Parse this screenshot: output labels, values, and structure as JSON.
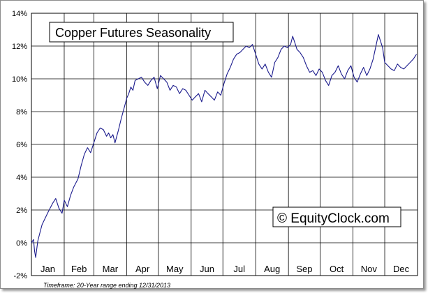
{
  "chart_data": {
    "type": "line",
    "title": "Copper Futures Seasonality",
    "watermark": "© EquityClock.com",
    "footnote": "Timeframe: 20-Year range ending 12/31/2013",
    "xlabel": "",
    "ylabel": "",
    "x_range_days": [
      0,
      365
    ],
    "ylim": [
      -2,
      14
    ],
    "y_ticks": [
      {
        "value": -2,
        "label": "-2%"
      },
      {
        "value": 0,
        "label": "0%"
      },
      {
        "value": 2,
        "label": "2%"
      },
      {
        "value": 4,
        "label": "4%"
      },
      {
        "value": 6,
        "label": "6%"
      },
      {
        "value": 8,
        "label": "8%"
      },
      {
        "value": 10,
        "label": "10%"
      },
      {
        "value": 12,
        "label": "12%"
      },
      {
        "value": 14,
        "label": "14%"
      }
    ],
    "months": [
      "Jan",
      "Feb",
      "Mar",
      "Apr",
      "May",
      "Jun",
      "Jul",
      "Aug",
      "Sep",
      "Oct",
      "Nov",
      "Dec"
    ],
    "month_start_days": [
      0,
      31,
      59,
      90,
      120,
      151,
      181,
      212,
      243,
      273,
      304,
      334
    ],
    "grid": true,
    "line_color": "#1a1a8c",
    "series": [
      {
        "name": "",
        "x_day": [
          0,
          2,
          3,
          4,
          6,
          8,
          10,
          13,
          16,
          20,
          23,
          26,
          29,
          31,
          34,
          37,
          40,
          44,
          47,
          50,
          53,
          56,
          59,
          62,
          65,
          68,
          71,
          73,
          75,
          77,
          79,
          82,
          85,
          88,
          90,
          92,
          94,
          96,
          98,
          101,
          104,
          107,
          110,
          113,
          116,
          119,
          122,
          125,
          128,
          131,
          134,
          137,
          140,
          143,
          146,
          149,
          152,
          155,
          158,
          161,
          164,
          167,
          170,
          173,
          176,
          179,
          182,
          185,
          188,
          191,
          194,
          197,
          200,
          203,
          206,
          209,
          212,
          215,
          218,
          221,
          224,
          227,
          230,
          233,
          236,
          239,
          242,
          245,
          247,
          249,
          251,
          254,
          257,
          260,
          263,
          266,
          269,
          272,
          275,
          278,
          281,
          284,
          287,
          290,
          293,
          296,
          299,
          302,
          305,
          308,
          311,
          314,
          317,
          320,
          323,
          326,
          328,
          330,
          332,
          334,
          337,
          340,
          343,
          346,
          349,
          352,
          355,
          358,
          361,
          364
        ],
        "values": [
          0.0,
          0.2,
          -0.5,
          -0.9,
          0.1,
          0.6,
          1.1,
          1.5,
          1.9,
          2.4,
          2.7,
          2.1,
          1.8,
          2.6,
          2.2,
          2.9,
          3.4,
          3.9,
          4.7,
          5.4,
          5.8,
          5.5,
          6.1,
          6.7,
          7.0,
          6.9,
          6.5,
          6.7,
          6.4,
          6.6,
          6.1,
          6.8,
          7.6,
          8.3,
          8.8,
          9.1,
          9.5,
          9.3,
          9.9,
          10.0,
          10.1,
          9.8,
          9.6,
          9.9,
          10.1,
          9.4,
          10.2,
          10.0,
          9.8,
          9.3,
          9.6,
          9.5,
          9.1,
          9.4,
          9.3,
          9.0,
          8.7,
          8.9,
          9.1,
          8.6,
          9.3,
          9.1,
          8.9,
          8.7,
          9.2,
          9.0,
          9.7,
          10.3,
          10.7,
          11.2,
          11.5,
          11.6,
          11.8,
          12.0,
          11.9,
          12.1,
          11.5,
          10.9,
          10.6,
          10.9,
          10.4,
          10.1,
          11.0,
          11.3,
          11.8,
          12.0,
          11.9,
          12.1,
          12.6,
          12.2,
          11.8,
          11.6,
          11.3,
          10.8,
          10.4,
          10.5,
          10.2,
          10.6,
          10.4,
          9.9,
          9.6,
          10.2,
          10.4,
          10.8,
          10.3,
          10.0,
          10.5,
          10.8,
          10.1,
          9.8,
          10.3,
          10.7,
          10.2,
          10.6,
          11.2,
          12.1,
          12.7,
          12.3,
          11.9,
          11.0,
          10.8,
          10.6,
          10.5,
          10.9,
          10.7,
          10.6,
          10.8,
          11.0,
          11.2,
          11.5
        ]
      }
    ]
  }
}
